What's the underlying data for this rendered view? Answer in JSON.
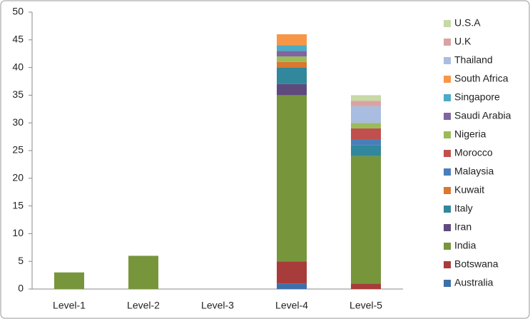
{
  "chart_data": {
    "type": "stacked-bar",
    "categories": [
      "Level-1",
      "Level-2",
      "Level-3",
      "Level-4",
      "Level-5"
    ],
    "series": [
      {
        "name": "Australia",
        "color": "#3f6fa8",
        "values": [
          0,
          0,
          0,
          1,
          0
        ]
      },
      {
        "name": "Botswana",
        "color": "#a83c3a",
        "values": [
          0,
          0,
          0,
          4,
          1
        ]
      },
      {
        "name": "India",
        "color": "#77963c",
        "values": [
          3,
          6,
          0,
          30,
          23
        ]
      },
      {
        "name": "Iran",
        "color": "#5f4a7e",
        "values": [
          0,
          0,
          0,
          2,
          0
        ]
      },
      {
        "name": "Italy",
        "color": "#31879b",
        "values": [
          0,
          0,
          0,
          3,
          2
        ]
      },
      {
        "name": "Kuwait",
        "color": "#d9782e",
        "values": [
          0,
          0,
          0,
          1,
          0
        ]
      },
      {
        "name": "Malaysia",
        "color": "#4a7ebb",
        "values": [
          0,
          0,
          0,
          0,
          1
        ]
      },
      {
        "name": "Morocco",
        "color": "#c0504d",
        "values": [
          0,
          0,
          0,
          0,
          2
        ]
      },
      {
        "name": "Nigeria",
        "color": "#9bbb59",
        "values": [
          0,
          0,
          0,
          1,
          1
        ]
      },
      {
        "name": "Saudi Arabia",
        "color": "#8064a2",
        "values": [
          0,
          0,
          0,
          1,
          0
        ]
      },
      {
        "name": "Singapore",
        "color": "#4bacc6",
        "values": [
          0,
          0,
          0,
          1,
          0
        ]
      },
      {
        "name": "South Africa",
        "color": "#f79646",
        "values": [
          0,
          0,
          0,
          2,
          0
        ]
      },
      {
        "name": "Thailand",
        "color": "#a9bde0",
        "values": [
          0,
          0,
          0,
          0,
          3
        ]
      },
      {
        "name": "U.K",
        "color": "#d9a3a1",
        "values": [
          0,
          0,
          0,
          0,
          1
        ]
      },
      {
        "name": "U.S.A",
        "color": "#c6d9a6",
        "values": [
          0,
          0,
          0,
          0,
          1
        ]
      }
    ],
    "ylim": [
      0,
      50
    ],
    "yticks": [
      0,
      5,
      10,
      15,
      20,
      25,
      30,
      35,
      40,
      45,
      50
    ]
  }
}
